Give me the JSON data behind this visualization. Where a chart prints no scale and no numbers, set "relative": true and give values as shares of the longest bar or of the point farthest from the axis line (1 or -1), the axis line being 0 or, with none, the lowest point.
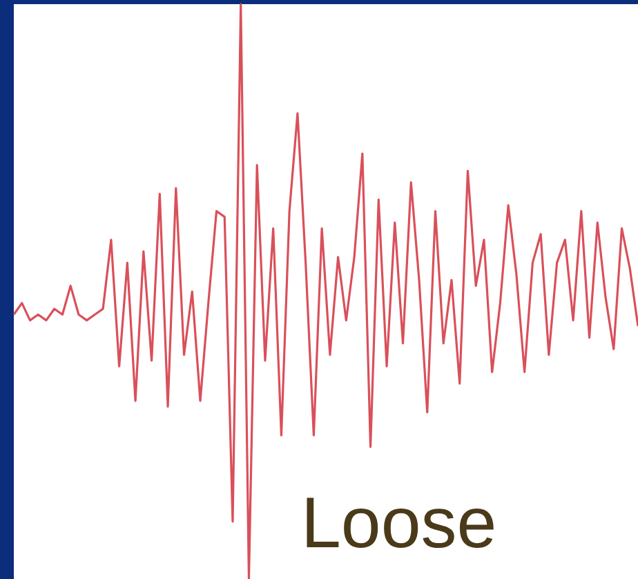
{
  "chart_data": {
    "type": "line",
    "relative": true,
    "annotations": [
      "Loose"
    ],
    "categories": [
      null,
      null,
      null,
      null,
      null,
      null,
      null,
      null,
      null,
      null,
      null,
      null,
      null,
      null,
      null,
      null,
      null,
      null,
      null,
      null,
      null,
      null,
      null,
      null,
      null,
      null,
      null,
      null,
      null,
      null,
      null,
      null,
      null,
      null,
      null,
      null,
      null,
      null,
      null,
      null,
      null,
      null,
      null,
      null,
      null,
      null,
      null,
      null,
      null,
      null,
      null,
      null,
      null,
      null,
      null,
      null,
      null,
      null,
      null,
      null,
      null,
      null,
      null,
      null,
      null,
      null,
      null,
      null,
      null,
      null,
      null,
      null,
      null,
      null,
      null,
      null,
      null,
      null
    ],
    "series": [
      {
        "color": "#d9505a",
        "values": [
          0.46,
          0.48,
          0.45,
          0.46,
          0.45,
          0.47,
          0.46,
          0.51,
          0.46,
          0.45,
          0.46,
          0.47,
          0.59,
          0.37,
          0.55,
          0.31,
          0.57,
          0.38,
          0.67,
          0.3,
          0.68,
          0.39,
          0.5,
          0.31,
          0.48,
          0.64,
          0.63,
          0.1,
          1,
          0,
          0.72,
          0.38,
          0.61,
          0.25,
          0.64,
          0.81,
          0.55,
          0.25,
          0.61,
          0.39,
          0.56,
          0.45,
          0.56,
          0.74,
          0.23,
          0.66,
          0.37,
          0.62,
          0.41,
          0.69,
          0.52,
          0.29,
          0.64,
          0.41,
          0.52,
          0.34,
          0.71,
          0.51,
          0.59,
          0.36,
          0.48,
          0.65,
          0.53,
          0.36,
          0.55,
          0.6,
          0.39,
          0.55,
          0.59,
          0.45,
          0.64,
          0.42,
          0.62,
          0.49,
          0.4,
          0.61,
          0.54,
          0.44
        ]
      }
    ],
    "grid": false,
    "marker": "none",
    "line_style": "solid"
  }
}
